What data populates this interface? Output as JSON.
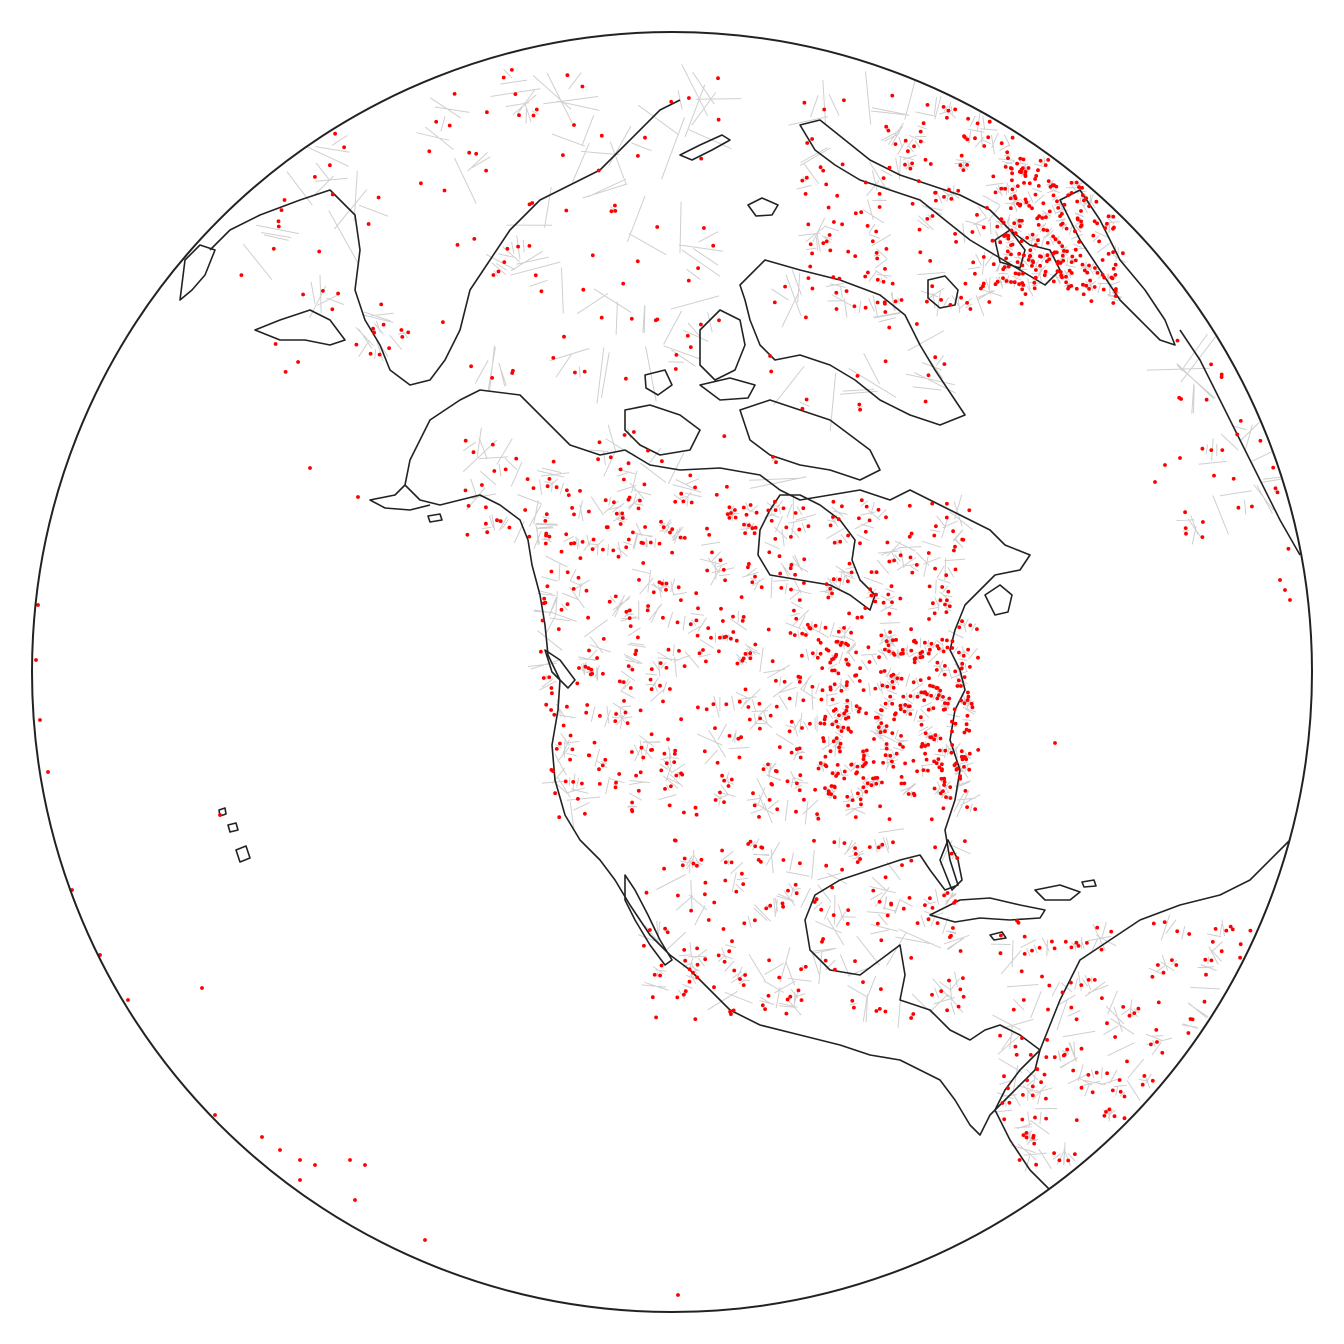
{
  "map": {
    "projection": "orthographic",
    "center": {
      "lon": -100,
      "lat": 45
    },
    "colors": {
      "background": "#ffffff",
      "globe_outline": "#222222",
      "coastline": "#222222",
      "voronoi_edges": "#cfcfcf",
      "points": "#ff0000"
    },
    "layers": [
      "globe-outline",
      "voronoi-cells",
      "coastlines",
      "points"
    ]
  }
}
